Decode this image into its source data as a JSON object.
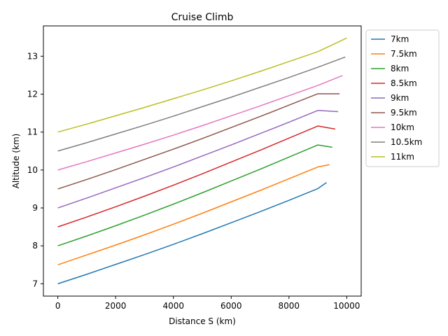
{
  "chart_data": {
    "type": "line",
    "title": "Cruise Climb",
    "xlabel": "Distance S (km)",
    "ylabel": "Altitude (km)",
    "xlim": [
      -500,
      10500
    ],
    "ylim": [
      6.675,
      13.8
    ],
    "xticks": [
      0,
      2000,
      4000,
      6000,
      8000,
      10000
    ],
    "yticks": [
      7,
      8,
      9,
      10,
      11,
      12,
      13
    ],
    "grid": false,
    "legend": "outside-right",
    "series": [
      {
        "name": "7km",
        "color": "#1f77b4",
        "x": [
          0,
          1000,
          2000,
          3000,
          4000,
          5000,
          6000,
          7000,
          8000,
          9000,
          9300
        ],
        "y": [
          7.0,
          7.25,
          7.51,
          7.77,
          8.04,
          8.32,
          8.61,
          8.9,
          9.2,
          9.51,
          9.67
        ]
      },
      {
        "name": "7.5km",
        "color": "#ff7f0e",
        "x": [
          0,
          1000,
          2000,
          3000,
          4000,
          5000,
          6000,
          7000,
          8000,
          9000,
          9400
        ],
        "y": [
          7.5,
          7.76,
          8.02,
          8.29,
          8.57,
          8.86,
          9.16,
          9.46,
          9.77,
          10.08,
          10.14
        ]
      },
      {
        "name": "8km",
        "color": "#2ca02c",
        "x": [
          0,
          1000,
          2000,
          3000,
          4000,
          5000,
          6000,
          7000,
          8000,
          9000,
          9500
        ],
        "y": [
          8.0,
          8.26,
          8.53,
          8.81,
          9.1,
          9.4,
          9.71,
          10.02,
          10.34,
          10.66,
          10.6
        ]
      },
      {
        "name": "8.5km",
        "color": "#d62728",
        "x": [
          0,
          1000,
          2000,
          3000,
          4000,
          5000,
          6000,
          7000,
          8000,
          9000,
          9600
        ],
        "y": [
          8.5,
          8.76,
          9.03,
          9.31,
          9.6,
          9.9,
          10.21,
          10.52,
          10.84,
          11.16,
          11.08
        ]
      },
      {
        "name": "9km",
        "color": "#9467bd",
        "x": [
          0,
          1000,
          2000,
          3000,
          4000,
          5000,
          6000,
          7000,
          8000,
          9000,
          9700
        ],
        "y": [
          9.0,
          9.26,
          9.53,
          9.8,
          10.08,
          10.37,
          10.66,
          10.96,
          11.26,
          11.57,
          11.54
        ]
      },
      {
        "name": "9.5km",
        "color": "#8c564b",
        "x": [
          0,
          1000,
          2000,
          3000,
          4000,
          5000,
          6000,
          7000,
          8000,
          9000,
          9750
        ],
        "y": [
          9.5,
          9.75,
          10.01,
          10.28,
          10.55,
          10.83,
          11.12,
          11.41,
          11.71,
          12.01,
          12.01
        ]
      },
      {
        "name": "10km",
        "color": "#e377c2",
        "x": [
          0,
          1000,
          2000,
          3000,
          4000,
          5000,
          6000,
          7000,
          8000,
          9000,
          9850
        ],
        "y": [
          10.0,
          10.22,
          10.45,
          10.68,
          10.92,
          11.17,
          11.43,
          11.69,
          11.96,
          12.23,
          12.49
        ]
      },
      {
        "name": "10.5km",
        "color": "#7f7f7f",
        "x": [
          0,
          1000,
          2000,
          3000,
          4000,
          5000,
          6000,
          7000,
          8000,
          9000,
          9950
        ],
        "y": [
          10.5,
          10.72,
          10.95,
          11.18,
          11.42,
          11.67,
          11.92,
          12.18,
          12.44,
          12.71,
          12.98
        ]
      },
      {
        "name": "11km",
        "color": "#bcbd22",
        "x": [
          0,
          1000,
          2000,
          3000,
          4000,
          5000,
          6000,
          7000,
          8000,
          9000,
          10000
        ],
        "y": [
          11.0,
          11.21,
          11.43,
          11.65,
          11.88,
          12.11,
          12.35,
          12.6,
          12.86,
          13.12,
          13.48
        ]
      }
    ]
  }
}
